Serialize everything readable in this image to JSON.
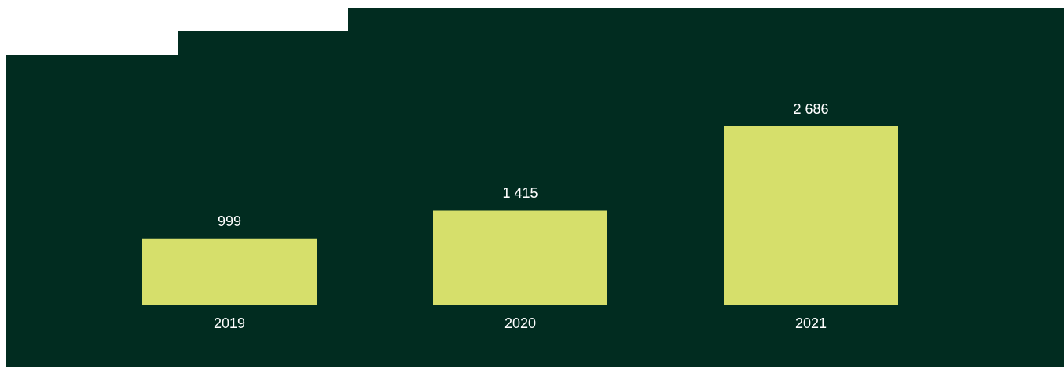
{
  "chart_data": {
    "type": "bar",
    "categories": [
      "2019",
      "2020",
      "2021"
    ],
    "values": [
      999,
      1415,
      2686
    ],
    "value_labels": [
      "999",
      "1 415",
      "2 686"
    ],
    "color": "#d6df6b",
    "grid": false,
    "legend": false,
    "tick_labels": "x"
  }
}
